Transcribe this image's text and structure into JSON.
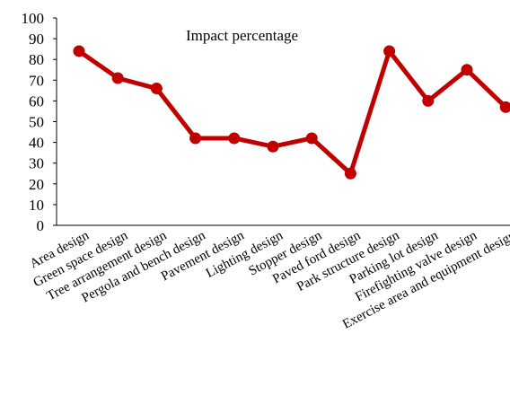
{
  "chart_data": {
    "type": "line",
    "title": "Impact percentage",
    "xlabel": "",
    "ylabel": "",
    "ylim": [
      0,
      100
    ],
    "yticks": [
      0,
      10,
      20,
      30,
      40,
      50,
      60,
      70,
      80,
      90,
      100
    ],
    "grid": false,
    "legend": "none",
    "categories": [
      "Area design",
      "Green space design",
      "Tree arrangement design",
      "Pergola and bench design",
      "Pavement design",
      "Lighting design",
      "Stopper design",
      "Paved ford design",
      "Park structure design",
      "Parking lot design",
      "Firefighting valve design",
      "Exercise area and equipment design"
    ],
    "series": [
      {
        "values": [
          84,
          71,
          66,
          42,
          42,
          38,
          42,
          25,
          84,
          60,
          75,
          57
        ],
        "color": "#c00000"
      }
    ]
  }
}
